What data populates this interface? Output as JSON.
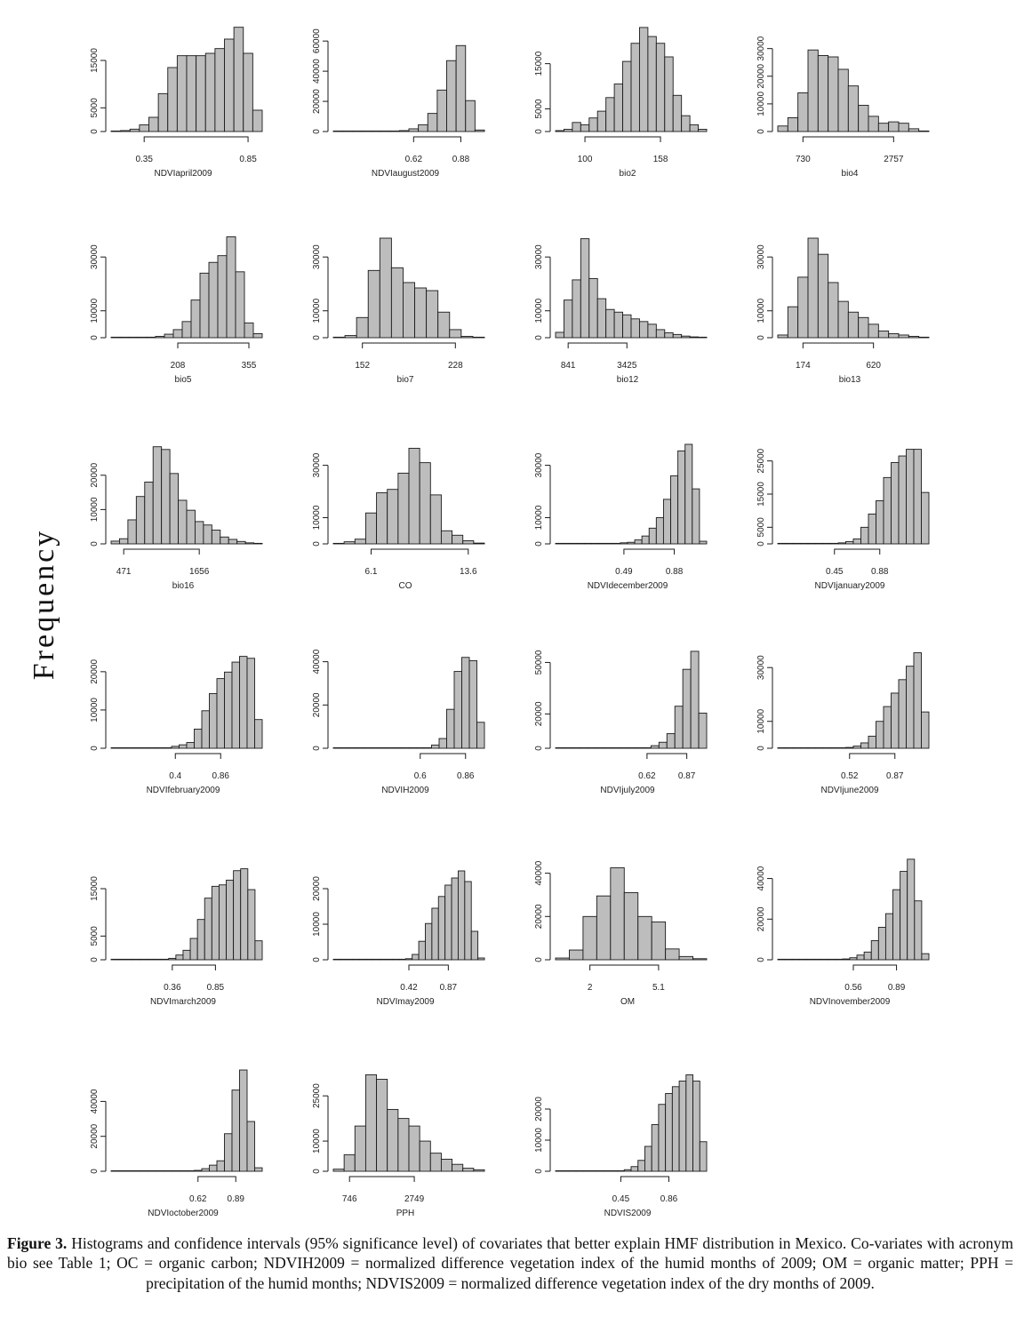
{
  "y_axis_label": "Frequency",
  "caption": {
    "label": "Figure 3.",
    "text": "Histograms and confidence intervals (95% significance level) of covariates that better explain HMF distribution in Mexico. Co-variates with acronym bio see Table 1; OC = organic carbon; NDVIH2009 = normalized difference vegetation index of the humid months of 2009; OM = organic matter; PPH = precipitation of the humid months; NDVIS2009 = normalized difference vegetation index of the dry months of 2009."
  },
  "colors": {
    "bar_fill": "#bdbdbd",
    "bar_stroke": "#1a1a1a",
    "axis": "#1a1a1a",
    "text": "#222222"
  },
  "chart_data": [
    {
      "type": "bar",
      "xlabel": "NDVIapril2009",
      "yticks": [
        0,
        5000,
        15000
      ],
      "ymax": 21000,
      "ci_labels": [
        "0.35",
        "0.85"
      ],
      "ci_bins": [
        3,
        14
      ],
      "values": [
        50,
        200,
        500,
        1400,
        3000,
        8000,
        13500,
        16000,
        16000,
        16000,
        16500,
        17500,
        19500,
        22000,
        16500,
        4500
      ]
    },
    {
      "type": "bar",
      "xlabel": "NDVIaugust2009",
      "yticks": [
        0,
        20000,
        40000,
        60000
      ],
      "ymax": 66000,
      "ci_labels": [
        "0.62",
        "0.88"
      ],
      "ci_bins": [
        8,
        13
      ],
      "values": [
        0,
        0,
        0,
        0,
        0,
        0,
        200,
        600,
        1800,
        4500,
        12000,
        27500,
        47000,
        57000,
        20500,
        1000
      ]
    },
    {
      "type": "bar",
      "xlabel": "bio2",
      "yticks": [
        0,
        5000,
        15000
      ],
      "ymax": 22000,
      "ci_labels": [
        "100",
        "158"
      ],
      "ci_bins": [
        3,
        12
      ],
      "values": [
        200,
        500,
        2000,
        1500,
        3000,
        4500,
        7500,
        10500,
        15500,
        19500,
        23000,
        21000,
        19500,
        16500,
        8000,
        3500,
        1500,
        500
      ]
    },
    {
      "type": "bar",
      "xlabel": "bio4",
      "yticks": [
        0,
        10000,
        20000,
        30000
      ],
      "ymax": 36000,
      "ci_labels": [
        "730",
        "2757"
      ],
      "ci_bins": [
        2,
        11
      ],
      "values": [
        2000,
        5000,
        14000,
        29500,
        27500,
        27000,
        22500,
        16500,
        9500,
        5500,
        3000,
        3500,
        3000,
        1000,
        200
      ]
    },
    {
      "type": "bar",
      "xlabel": "bio5",
      "yticks": [
        0,
        10000,
        30000
      ],
      "ymax": 37000,
      "ci_labels": [
        "208",
        "355"
      ],
      "ci_bins": [
        7,
        15
      ],
      "values": [
        0,
        0,
        0,
        0,
        200,
        500,
        1300,
        3000,
        6000,
        14000,
        24000,
        28000,
        30500,
        37500,
        24500,
        5500,
        1500
      ]
    },
    {
      "type": "bar",
      "xlabel": "bio7",
      "yticks": [
        0,
        10000,
        30000
      ],
      "ymax": 37000,
      "ci_labels": [
        "152",
        "228"
      ],
      "ci_bins": [
        2,
        10
      ],
      "values": [
        200,
        800,
        7500,
        25000,
        37000,
        26000,
        20500,
        18500,
        17500,
        9500,
        3000,
        500,
        100
      ]
    },
    {
      "type": "bar",
      "xlabel": "bio12",
      "yticks": [
        0,
        10000,
        30000
      ],
      "ymax": 37000,
      "ci_labels": [
        "841",
        "3425"
      ],
      "ci_bins": [
        1,
        8
      ],
      "values": [
        2000,
        14000,
        21500,
        36800,
        22000,
        14500,
        10500,
        9500,
        8500,
        7000,
        6000,
        5000,
        3000,
        1800,
        1200,
        600,
        300,
        100
      ]
    },
    {
      "type": "bar",
      "xlabel": "bio13",
      "yticks": [
        0,
        10000,
        30000
      ],
      "ymax": 37000,
      "ci_labels": [
        "174",
        "620"
      ],
      "ci_bins": [
        2,
        9
      ],
      "values": [
        1000,
        11500,
        22500,
        37000,
        31000,
        20500,
        13500,
        9500,
        7500,
        5000,
        2500,
        1500,
        1000,
        500,
        200
      ]
    },
    {
      "type": "bar",
      "xlabel": "bio16",
      "yticks": [
        0,
        10000,
        20000
      ],
      "ymax": 29000,
      "ci_labels": [
        "471",
        "1656"
      ],
      "ci_bins": [
        1,
        10
      ],
      "values": [
        800,
        1500,
        7000,
        13800,
        18000,
        28300,
        27500,
        20500,
        12700,
        9800,
        6500,
        5500,
        4000,
        2000,
        1300,
        700,
        300,
        100
      ]
    },
    {
      "type": "bar",
      "xlabel": "CO",
      "yticks": [
        0,
        10000,
        30000
      ],
      "ymax": 38000,
      "ci_labels": [
        "6.1",
        "13.6"
      ],
      "ci_bins": [
        3,
        12
      ],
      "values": [
        200,
        800,
        1800,
        11800,
        19500,
        20800,
        27000,
        36500,
        31000,
        18700,
        5000,
        3300,
        1200,
        300
      ]
    },
    {
      "type": "bar",
      "xlabel": "NDVIdecember2009",
      "yticks": [
        0,
        10000,
        30000
      ],
      "ymax": 38000,
      "ci_labels": [
        "0.49",
        "0.88"
      ],
      "ci_bins": [
        9,
        16
      ],
      "values": [
        0,
        0,
        0,
        0,
        0,
        0,
        0,
        0,
        100,
        400,
        600,
        1500,
        3000,
        6000,
        10000,
        17000,
        26000,
        35500,
        38000,
        21000,
        1000
      ]
    },
    {
      "type": "bar",
      "xlabel": "NDVIjanuary2009",
      "yticks": [
        0,
        5000,
        15000,
        25000
      ],
      "ymax": 30000,
      "ci_labels": [
        "0.45",
        "0.88"
      ],
      "ci_bins": [
        7,
        13
      ],
      "values": [
        0,
        0,
        0,
        0,
        0,
        0,
        0,
        100,
        300,
        700,
        1500,
        5000,
        9000,
        13000,
        20000,
        24500,
        26500,
        28500,
        28500,
        15500
      ]
    },
    {
      "type": "bar",
      "xlabel": "NDVIfebruary2009",
      "yticks": [
        0,
        10000,
        20000
      ],
      "ymax": 26000,
      "ci_labels": [
        "0.4",
        "0.86"
      ],
      "ci_bins": [
        8,
        14
      ],
      "values": [
        0,
        0,
        0,
        0,
        0,
        0,
        0,
        100,
        500,
        900,
        1500,
        5000,
        9800,
        14300,
        18200,
        19900,
        22500,
        24000,
        23500,
        7500
      ]
    },
    {
      "type": "bar",
      "xlabel": "NDVIH2009",
      "yticks": [
        0,
        20000,
        40000
      ],
      "ymax": 46000,
      "ci_labels": [
        "0.6",
        "0.86"
      ],
      "ci_bins": [
        11,
        17
      ],
      "values": [
        0,
        0,
        0,
        0,
        0,
        0,
        0,
        0,
        0,
        0,
        0,
        100,
        200,
        1500,
        4500,
        18000,
        35500,
        42000,
        40500,
        12000
      ]
    },
    {
      "type": "bar",
      "xlabel": "NDVIjuly2009",
      "yticks": [
        0,
        20000,
        50000
      ],
      "ymax": 58000,
      "ci_labels": [
        "0.62",
        "0.87"
      ],
      "ci_bins": [
        11,
        16
      ],
      "values": [
        0,
        0,
        0,
        0,
        0,
        0,
        0,
        0,
        0,
        0,
        100,
        300,
        1500,
        3500,
        8500,
        24500,
        46000,
        56500,
        20500
      ]
    },
    {
      "type": "bar",
      "xlabel": "NDVIjune2009",
      "yticks": [
        0,
        10000,
        30000
      ],
      "ymax": 37000,
      "ci_labels": [
        "0.52",
        "0.87"
      ],
      "ci_bins": [
        9,
        15
      ],
      "values": [
        0,
        0,
        0,
        0,
        0,
        0,
        0,
        0,
        100,
        300,
        800,
        2000,
        4500,
        10000,
        15500,
        20500,
        25500,
        30500,
        35500,
        13500
      ]
    },
    {
      "type": "bar",
      "xlabel": "NDVImarch2009",
      "yticks": [
        0,
        5000,
        15000
      ],
      "ymax": 21000,
      "ci_labels": [
        "0.36",
        "0.85"
      ],
      "ci_bins": [
        8,
        14
      ],
      "values": [
        0,
        0,
        0,
        0,
        0,
        0,
        0,
        100,
        300,
        1000,
        2000,
        4500,
        8500,
        13000,
        15500,
        15800,
        16800,
        18800,
        19200,
        14800,
        4000
      ]
    },
    {
      "type": "bar",
      "xlabel": "NDVImay2009",
      "yticks": [
        0,
        10000,
        20000
      ],
      "ymax": 28000,
      "ci_labels": [
        "0.42",
        "0.87"
      ],
      "ci_bins": [
        11,
        17
      ],
      "values": [
        0,
        0,
        0,
        0,
        0,
        0,
        0,
        0,
        0,
        0,
        100,
        300,
        1500,
        5200,
        10200,
        14500,
        17800,
        21000,
        23000,
        25000,
        22000,
        8000,
        500
      ]
    },
    {
      "type": "bar",
      "xlabel": "OM",
      "yticks": [
        0,
        20000,
        40000
      ],
      "ymax": 46000,
      "ci_labels": [
        "2",
        "5.1"
      ],
      "ci_bins": [
        2,
        7
      ],
      "values": [
        800,
        4500,
        20000,
        29500,
        42500,
        31000,
        20000,
        17500,
        5000,
        1500,
        500
      ]
    },
    {
      "type": "bar",
      "xlabel": "NDVInovember2009",
      "yticks": [
        0,
        20000,
        40000
      ],
      "ymax": 49000,
      "ci_labels": [
        "0.56",
        "0.89"
      ],
      "ci_bins": [
        10,
        16
      ],
      "values": [
        0,
        0,
        0,
        0,
        0,
        0,
        0,
        0,
        100,
        400,
        1000,
        2300,
        3800,
        9400,
        16000,
        22700,
        34500,
        43500,
        49500,
        29000,
        3000
      ]
    },
    {
      "type": "bar",
      "xlabel": "NDVIoctober2009",
      "yticks": [
        0,
        20000,
        40000
      ],
      "ymax": 57000,
      "ci_labels": [
        "0.62",
        "0.89"
      ],
      "ci_bins": [
        11,
        16
      ],
      "values": [
        0,
        0,
        0,
        0,
        0,
        0,
        0,
        0,
        0,
        0,
        200,
        500,
        1500,
        3500,
        6000,
        21500,
        46500,
        58000,
        28500,
        2000
      ]
    },
    {
      "type": "bar",
      "xlabel": "PPH",
      "yticks": [
        0,
        10000,
        25000
      ],
      "ymax": 33000,
      "ci_labels": [
        "746",
        "2749"
      ],
      "ci_bins": [
        1,
        7
      ],
      "values": [
        700,
        5500,
        15000,
        32000,
        30500,
        20500,
        17500,
        15000,
        10000,
        6000,
        4000,
        2300,
        1000,
        500
      ]
    },
    {
      "type": "bar",
      "xlabel": "NDVIS2009",
      "yticks": [
        0,
        10000,
        20000
      ],
      "ymax": 32000,
      "ci_labels": [
        "0.45",
        "0.86"
      ],
      "ci_bins": [
        9,
        16
      ],
      "values": [
        0,
        0,
        0,
        0,
        0,
        0,
        0,
        0,
        0,
        100,
        500,
        1500,
        3500,
        8000,
        15000,
        21500,
        25000,
        27200,
        29000,
        31000,
        29000,
        9500
      ]
    }
  ]
}
